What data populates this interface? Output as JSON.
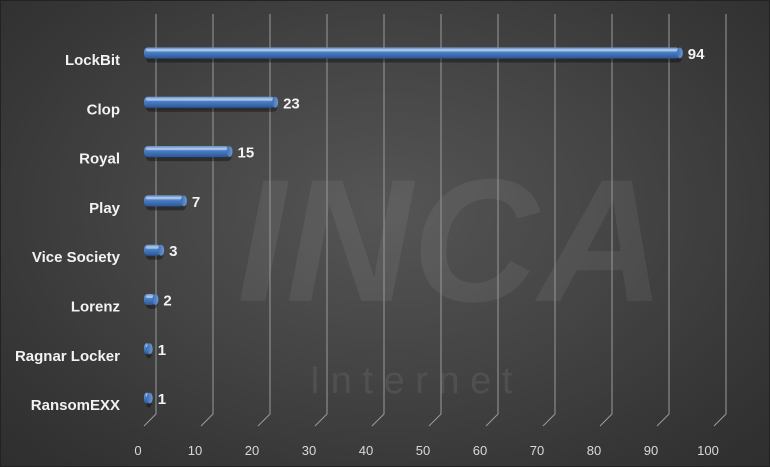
{
  "watermark": {
    "main": "INCA",
    "sub": "I n t e r n e t"
  },
  "colors": {
    "bar_top": "#7aa6dc",
    "bar_mid": "#4a7dc4",
    "bar_bottom": "#2b5797",
    "grid": "#9a9a9a",
    "text": "#f2f2f2"
  },
  "chart_data": {
    "type": "bar",
    "orientation": "horizontal",
    "categories": [
      "LockBit",
      "Clop",
      "Royal",
      "Play",
      "Vice Society",
      "Lorenz",
      "Ragnar Locker",
      "RansomEXX"
    ],
    "values": [
      94,
      23,
      15,
      7,
      3,
      2,
      1,
      1
    ],
    "xlim": [
      0,
      100
    ],
    "ticks": [
      "0",
      "10",
      "20",
      "30",
      "40",
      "50",
      "60",
      "70",
      "80",
      "90",
      "100"
    ],
    "tick_values": [
      0,
      10,
      20,
      30,
      40,
      50,
      60,
      70,
      80,
      90,
      100
    ],
    "data_labels": [
      "94",
      "23",
      "15",
      "7",
      "3",
      "2",
      "1",
      "1"
    ],
    "grid": true,
    "legend": "none",
    "title": "",
    "xlabel": "",
    "ylabel": ""
  }
}
